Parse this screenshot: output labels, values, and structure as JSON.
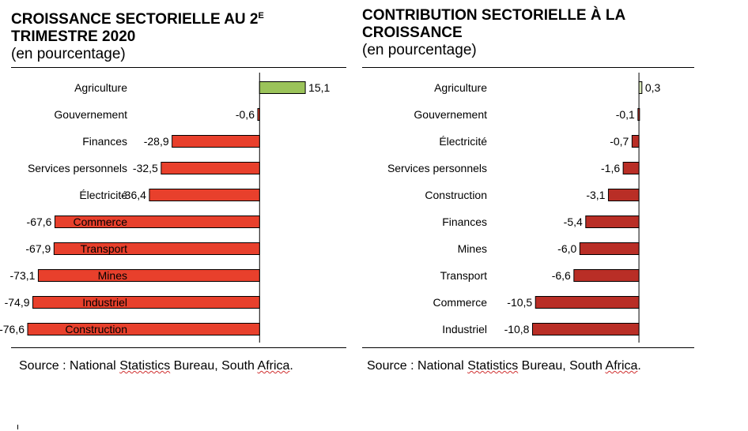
{
  "chart_data": [
    {
      "type": "bar",
      "orientation": "horizontal",
      "title_parts": [
        "CROISSANCE SECTORIELLE AU 2",
        "E",
        "TRIMESTRE 2020"
      ],
      "subtitle": "(en pourcentage)",
      "categories": [
        "Agriculture",
        "Gouvernement",
        "Finances",
        "Services personnels",
        "Électricité",
        "Commerce",
        "Transport",
        "Mines",
        "Industriel",
        "Construction"
      ],
      "values": [
        15.1,
        -0.6,
        -28.9,
        -32.5,
        -36.4,
        -67.6,
        -67.9,
        -73.1,
        -74.9,
        -76.6
      ],
      "value_labels": [
        "15,1",
        "-0,6",
        "-28,9",
        "-32,5",
        "-36,4",
        "-67,6",
        "-67,9",
        "-73,1",
        "-74,9",
        "-76,6"
      ],
      "xlim": [
        -80,
        25
      ],
      "colors": {
        "positive": "#9bc35a",
        "negative": "#e8402c"
      },
      "source_prefix": "Source : National ",
      "source_underlined_1": "Statistics",
      "source_middle": " Bureau, South ",
      "source_underlined_2": "Africa",
      "source_suffix": "."
    },
    {
      "type": "bar",
      "orientation": "horizontal",
      "title_line1": "CONTRIBUTION SECTORIELLE À LA",
      "title_line2": "CROISSANCE",
      "subtitle": "(en pourcentage)",
      "categories": [
        "Agriculture",
        "Gouvernement",
        "Électricité",
        "Services personnels",
        "Construction",
        "Finances",
        "Mines",
        "Transport",
        "Commerce",
        "Industriel"
      ],
      "values": [
        0.3,
        -0.1,
        -0.7,
        -1.6,
        -3.1,
        -5.4,
        -6.0,
        -6.6,
        -10.5,
        -10.8
      ],
      "value_labels": [
        "0,3",
        "-0,1",
        "-0,7",
        "-1,6",
        "-3,1",
        "-5,4",
        "-6,0",
        "-6,6",
        "-10,5",
        "-10,8"
      ],
      "xlim": [
        -11,
        2
      ],
      "colors": {
        "positive": "#d7e5b8",
        "negative": "#b92e26"
      },
      "source_prefix": "Source :  National ",
      "source_underlined_1": "Statistics",
      "source_middle": " Bureau, South ",
      "source_underlined_2": "Africa",
      "source_suffix": "."
    }
  ]
}
